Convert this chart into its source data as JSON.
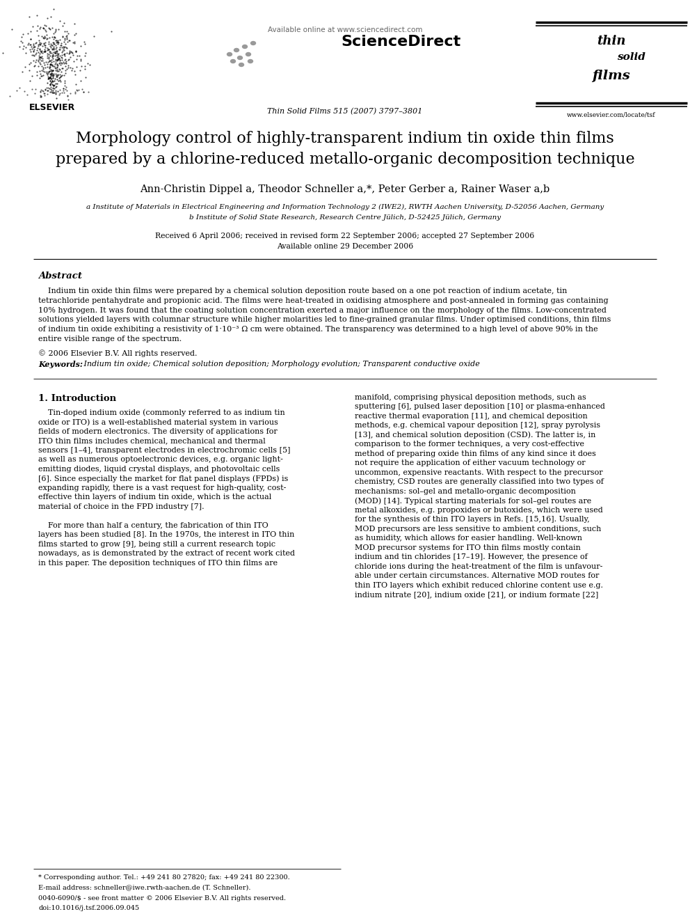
{
  "bg_color": "#ffffff",
  "title_line1": "Morphology control of highly-transparent indium tin oxide thin films",
  "title_line2": "prepared by a chlorine-reduced metallo-organic decomposition technique",
  "authors": "Ann-Christin Dippel a, Theodor Schneller a,*, Peter Gerber a, Rainer Waser a,b",
  "affil_a": "a Institute of Materials in Electrical Engineering and Information Technology 2 (IWE2), RWTH Aachen University, D-52056 Aachen, Germany",
  "affil_b": "b Institute of Solid State Research, Research Centre Jülich, D-52425 Jülich, Germany",
  "dates": "Received 6 April 2006; received in revised form 22 September 2006; accepted 27 September 2006",
  "available": "Available online 29 December 2006",
  "journal": "Thin Solid Films 515 (2007) 3797–3801",
  "available_online": "Available online at www.sciencedirect.com",
  "website": "www.elsevier.com/locate/tsf",
  "abstract_title": "Abstract",
  "copyright": "© 2006 Elsevier B.V. All rights reserved.",
  "keywords_label": "Keywords:",
  "keywords": " Indium tin oxide; Chemical solution deposition; Morphology evolution; Transparent conductive oxide",
  "section1_title": "1. Introduction",
  "footnote_star": "* Corresponding author. Tel.: +49 241 80 27820; fax: +49 241 80 22300.",
  "footnote_email": "E-mail address: schneller@iwe.rwth-aachen.de (T. Schneller).",
  "issn": "0040-6090/$ - see front matter © 2006 Elsevier B.V. All rights reserved.",
  "doi": "doi:10.1016/j.tsf.2006.09.045",
  "abstract_lines": [
    "    Indium tin oxide thin films were prepared by a chemical solution deposition route based on a one pot reaction of indium acetate, tin",
    "tetrachloride pentahydrate and propionic acid. The films were heat-treated in oxidising atmosphere and post-annealed in forming gas containing",
    "10% hydrogen. It was found that the coating solution concentration exerted a major influence on the morphology of the films. Low-concentrated",
    "solutions yielded layers with columnar structure while higher molarities led to fine-grained granular films. Under optimised conditions, thin films",
    "of indium tin oxide exhibiting a resistivity of 1·10⁻³ Ω cm were obtained. The transparency was determined to a high level of above 90% in the",
    "entire visible range of the spectrum."
  ],
  "col1_lines": [
    "    Tin-doped indium oxide (commonly referred to as indium tin",
    "oxide or ITO) is a well-established material system in various",
    "fields of modern electronics. The diversity of applications for",
    "ITO thin films includes chemical, mechanical and thermal",
    "sensors [1–4], transparent electrodes in electrochromic cells [5]",
    "as well as numerous optoelectronic devices, e.g. organic light-",
    "emitting diodes, liquid crystal displays, and photovoltaic cells",
    "[6]. Since especially the market for flat panel displays (FPDs) is",
    "expanding rapidly, there is a vast request for high-quality, cost-",
    "effective thin layers of indium tin oxide, which is the actual",
    "material of choice in the FPD industry [7].",
    "",
    "    For more than half a century, the fabrication of thin ITO",
    "layers has been studied [8]. In the 1970s, the interest in ITO thin",
    "films started to grow [9], being still a current research topic",
    "nowadays, as is demonstrated by the extract of recent work cited",
    "in this paper. The deposition techniques of ITO thin films are"
  ],
  "col2_lines": [
    "manifold, comprising physical deposition methods, such as",
    "sputtering [6], pulsed laser deposition [10] or plasma-enhanced",
    "reactive thermal evaporation [11], and chemical deposition",
    "methods, e.g. chemical vapour deposition [12], spray pyrolysis",
    "[13], and chemical solution deposition (CSD). The latter is, in",
    "comparison to the former techniques, a very cost-effective",
    "method of preparing oxide thin films of any kind since it does",
    "not require the application of either vacuum technology or",
    "uncommon, expensive reactants. With respect to the precursor",
    "chemistry, CSD routes are generally classified into two types of",
    "mechanisms: sol–gel and metallo-organic decomposition",
    "(MOD) [14]. Typical starting materials for sol–gel routes are",
    "metal alkoxides, e.g. propoxides or butoxides, which were used",
    "for the synthesis of thin ITO layers in Refs. [15,16]. Usually,",
    "MOD precursors are less sensitive to ambient conditions, such",
    "as humidity, which allows for easier handling. Well-known",
    "MOD precursor systems for ITO thin films mostly contain",
    "indium and tin chlorides [17–19]. However, the presence of",
    "chloride ions during the heat-treatment of the film is unfavour-",
    "able under certain circumstances. Alternative MOD routes for",
    "thin ITO layers which exhibit reduced chlorine content use e.g.",
    "indium nitrate [20], indium oxide [21], or indium formate [22]"
  ]
}
